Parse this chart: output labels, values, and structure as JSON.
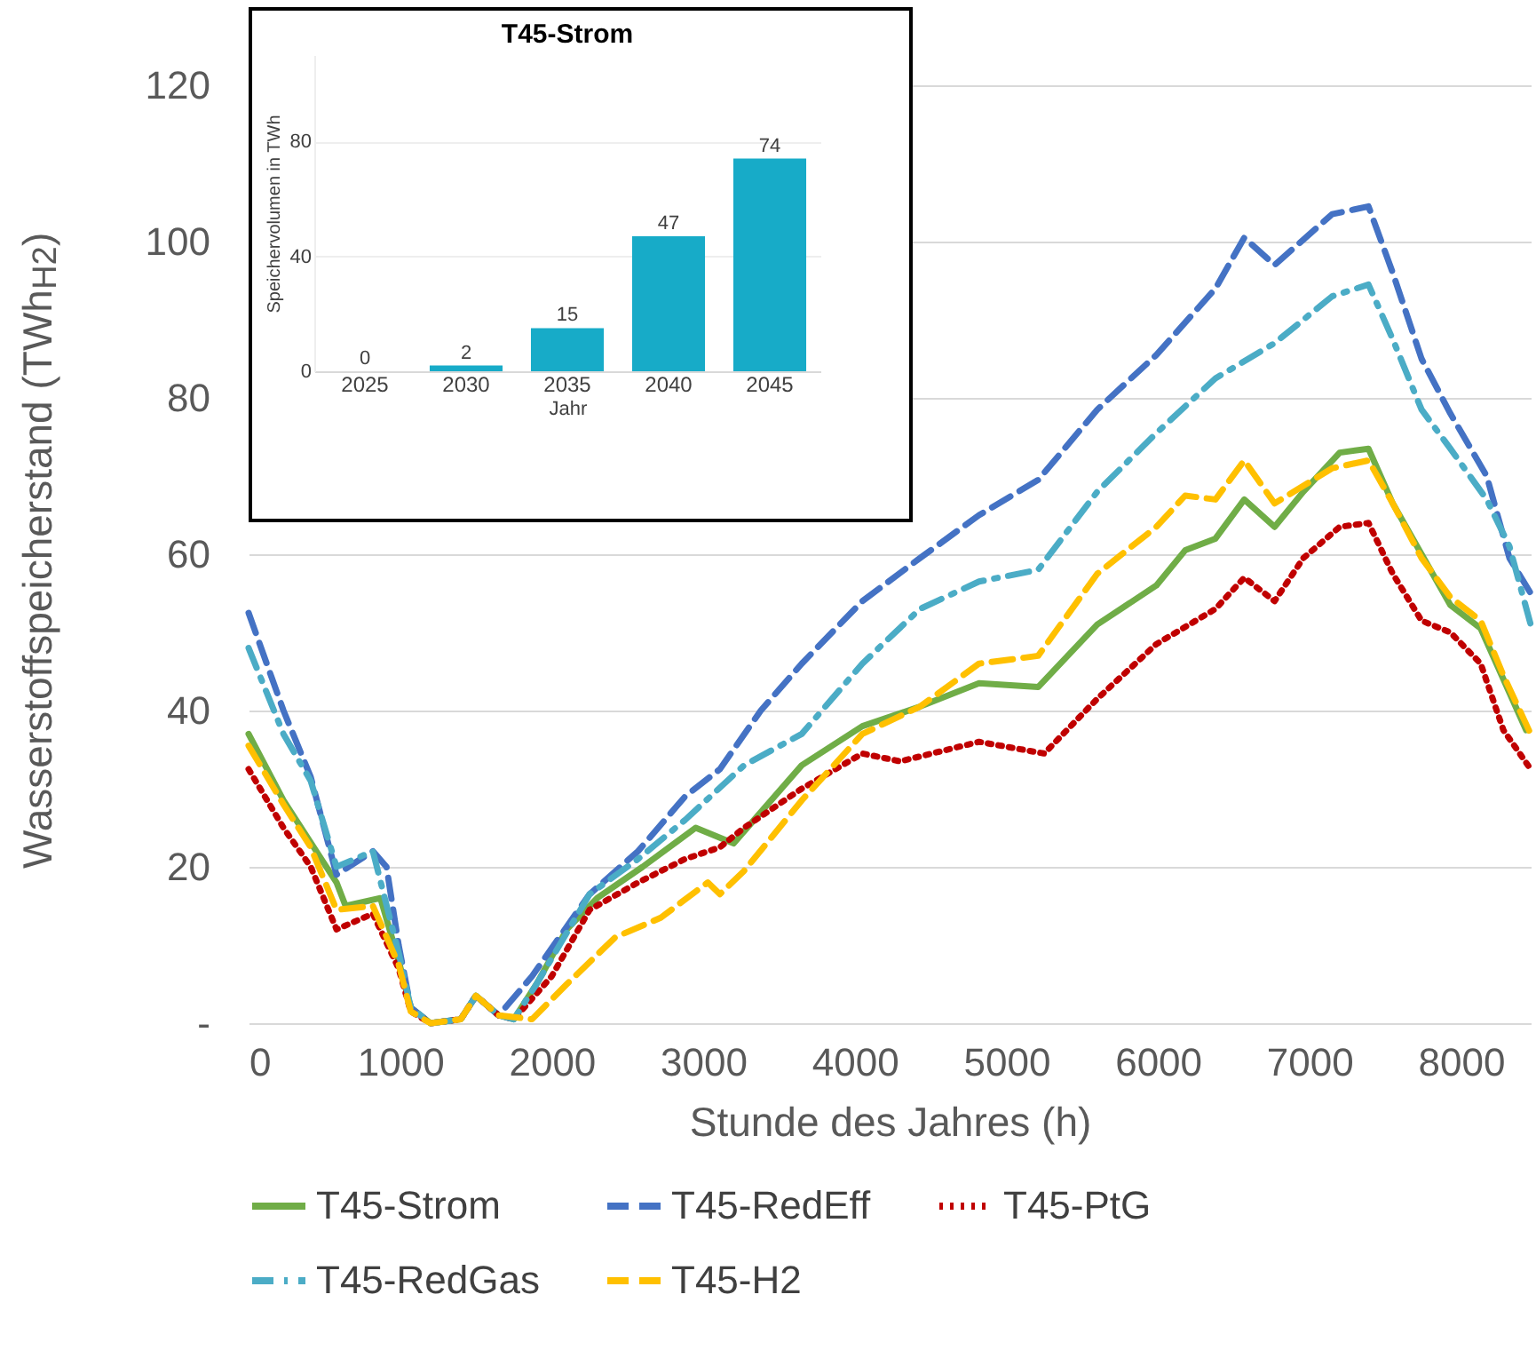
{
  "chart_data": [
    {
      "type": "line",
      "xlabel": "Stunde des Jahres (h)",
      "ylabel": "Wasserstoffspeicherstand (TWh$_{H2}$)",
      "xlim": [
        0,
        8460
      ],
      "xticks": [
        0,
        1000,
        2000,
        3000,
        4000,
        5000,
        6000,
        7000,
        8000
      ],
      "ylim": [
        0,
        120
      ],
      "yticks": [
        {
          "value": 0,
          "label": "-"
        },
        20,
        40,
        60,
        80,
        100,
        120
      ],
      "grid": "y",
      "legend": "bottom",
      "marker": "none",
      "series": [
        {
          "name": "T45-Strom",
          "color": "#70ad47",
          "line_style": "solid",
          "x": [
            0,
            230,
            580,
            640,
            870,
            990,
            1070,
            1200,
            1400,
            1500,
            1650,
            1750,
            1900,
            2100,
            2300,
            2600,
            2950,
            3200,
            3650,
            4050,
            4430,
            4820,
            5210,
            5600,
            5990,
            6180,
            6380,
            6570,
            6770,
            6960,
            7200,
            7390,
            7550,
            7740,
            7930,
            8130,
            8280,
            8430
          ],
          "values": [
            37,
            28.5,
            18,
            15,
            16,
            8,
            2,
            0,
            0.5,
            3.5,
            1,
            0.5,
            5,
            12,
            16,
            20,
            25,
            23,
            33,
            38,
            40.5,
            43.5,
            43,
            51,
            56,
            60.5,
            62,
            67,
            63.5,
            68,
            73,
            73.5,
            66.5,
            60,
            53.5,
            50.5,
            44,
            37.5
          ]
        },
        {
          "name": "T45-RedEff",
          "color": "#4472c4",
          "line_style": "dashed",
          "x": [
            0,
            230,
            410,
            580,
            820,
            910,
            990,
            1070,
            1200,
            1400,
            1500,
            1650,
            1870,
            2250,
            2570,
            2880,
            3110,
            3380,
            3650,
            4050,
            4430,
            4820,
            5210,
            5600,
            5990,
            6380,
            6570,
            6770,
            7150,
            7390,
            7550,
            7740,
            7930,
            8170,
            8320,
            8460
          ],
          "values": [
            52.5,
            40,
            31.5,
            19,
            22,
            20,
            10,
            2,
            0,
            0.5,
            3.5,
            1,
            6,
            16.5,
            22,
            29,
            32.5,
            40,
            46,
            54,
            59.5,
            65,
            69.5,
            78.5,
            85.5,
            94,
            100.5,
            97,
            103.5,
            104.5,
            96,
            85,
            78,
            70,
            59.5,
            55
          ]
        },
        {
          "name": "T45-PtG",
          "color": "#c00000",
          "line_style": "dotted",
          "x": [
            0,
            230,
            410,
            580,
            820,
            990,
            1070,
            1200,
            1400,
            1500,
            1650,
            1750,
            2000,
            2250,
            2570,
            2880,
            3110,
            3270,
            3650,
            4050,
            4300,
            4820,
            5250,
            5600,
            5990,
            6380,
            6570,
            6770,
            6960,
            7200,
            7390,
            7550,
            7740,
            7930,
            8130,
            8280,
            8460
          ],
          "values": [
            32.5,
            25,
            20,
            12,
            14,
            7,
            1.5,
            0,
            0.5,
            3.5,
            1,
            0.5,
            6,
            14.5,
            18,
            21,
            22.5,
            25,
            30,
            34.5,
            33.5,
            36,
            34.5,
            41.5,
            48.5,
            53,
            57,
            54,
            59.5,
            63.5,
            64,
            57.5,
            51.5,
            50,
            46,
            37.5,
            32.5
          ]
        },
        {
          "name": "T45-RedGas",
          "color": "#4bacc6",
          "line_style": "dashdot",
          "x": [
            0,
            230,
            410,
            580,
            820,
            990,
            1070,
            1200,
            1400,
            1500,
            1650,
            1750,
            1900,
            2250,
            2570,
            2880,
            3270,
            3650,
            4050,
            4430,
            4820,
            5210,
            5600,
            5990,
            6380,
            6770,
            7150,
            7390,
            7550,
            7740,
            7930,
            8170,
            8320,
            8460
          ],
          "values": [
            48,
            37,
            31,
            20,
            22,
            9,
            2,
            0,
            0.5,
            3.5,
            1,
            0.5,
            5,
            16.5,
            21,
            26,
            33,
            37,
            46,
            53,
            56.5,
            58,
            68,
            75.5,
            82.5,
            87,
            93,
            94.5,
            87.5,
            78.5,
            73.5,
            67,
            61,
            51
          ]
        },
        {
          "name": "T45-H2",
          "color": "#ffc000",
          "line_style": "dashed",
          "x": [
            0,
            230,
            410,
            580,
            820,
            990,
            1070,
            1200,
            1400,
            1500,
            1650,
            1870,
            2100,
            2420,
            2720,
            3030,
            3110,
            3270,
            3650,
            4050,
            4430,
            4820,
            5210,
            5600,
            5990,
            6180,
            6380,
            6570,
            6770,
            7150,
            7390,
            7550,
            7740,
            7930,
            8130,
            8280,
            8460
          ],
          "values": [
            35.5,
            28,
            22.5,
            14.5,
            15,
            7.5,
            1.5,
            0,
            0.5,
            3.5,
            1,
            0.5,
            5,
            11,
            13.5,
            18,
            16.5,
            19.5,
            28.5,
            37,
            40.5,
            46,
            47,
            57.5,
            63.5,
            67.5,
            67,
            72,
            66.5,
            71,
            72,
            66.5,
            59.5,
            54.5,
            51.5,
            44.5,
            37
          ]
        }
      ]
    },
    {
      "type": "bar",
      "title": "T45-Strom",
      "xlabel": "Jahr",
      "ylabel": "Speichervolumen in TWh",
      "categories": [
        "2025",
        "2030",
        "2035",
        "2040",
        "2045"
      ],
      "values": [
        0,
        2,
        15,
        47,
        74
      ],
      "color": "#17abc8",
      "ylim": [
        0,
        110
      ],
      "yticks": [
        0,
        40,
        80
      ],
      "grid": "y",
      "data_labels": true
    }
  ]
}
